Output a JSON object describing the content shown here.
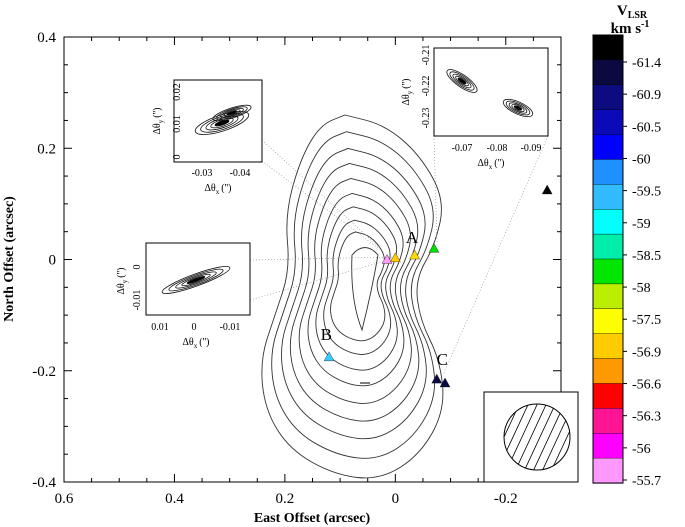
{
  "chart_data": {
    "type": "scatter",
    "xlabel": "East Offset (arcsec)",
    "ylabel": "North Offset (arcsec)",
    "xlim": [
      0.6,
      -0.3
    ],
    "ylim": [
      -0.4,
      0.4
    ],
    "xticks": [
      "0.6",
      "0.4",
      "0.2",
      "0",
      "-0.2"
    ],
    "yticks": [
      "0.4",
      "0.2",
      "0",
      "-0.2",
      "-0.4"
    ],
    "grid": false,
    "colorbar": {
      "title_main": "V",
      "title_sub": "LSR",
      "title_unit": "km s",
      "title_exp": "-1",
      "position": "right",
      "labels": [
        "-61.4",
        "-60.9",
        "-60.5",
        "-60",
        "-59.5",
        "-59",
        "-58.5",
        "-58",
        "-57.5",
        "-56.9",
        "-56.6",
        "-56.3",
        "-56",
        "-55.7"
      ],
      "colors": [
        "#000000",
        "#0a0a40",
        "#0c0c80",
        "#0a0ab8",
        "#0000ff",
        "#1e90ff",
        "#33bbff",
        "#00ffff",
        "#00eeaa",
        "#00e600",
        "#bbee00",
        "#ffff00",
        "#ffcc00",
        "#ff9900",
        "#ff0000",
        "#ff1493",
        "#ff00ff",
        "#ff99ff"
      ]
    },
    "labels": [
      {
        "text": "A",
        "x": -0.03,
        "y": 0.03
      },
      {
        "text": "B",
        "x": 0.125,
        "y": -0.145
      },
      {
        "text": "C",
        "x": -0.085,
        "y": -0.19
      }
    ],
    "points": [
      {
        "x": 0.12,
        "y": -0.175,
        "color": "#33ccff"
      },
      {
        "x": 0.015,
        "y": 0.0,
        "color": "#ff99ff"
      },
      {
        "x": 0.0,
        "y": 0.003,
        "color": "#ffcc00"
      },
      {
        "x": -0.035,
        "y": 0.008,
        "color": "#ffdd00"
      },
      {
        "x": -0.07,
        "y": 0.02,
        "color": "#00dd00"
      },
      {
        "x": -0.075,
        "y": -0.215,
        "color": "#0a0a40"
      },
      {
        "x": -0.09,
        "y": -0.222,
        "color": "#0a0a40"
      },
      {
        "x": -0.275,
        "y": 0.125,
        "color": "#000000"
      }
    ],
    "insets": [
      {
        "xlabel_main": "Δθ",
        "xlabel_sub": "x",
        "xlabel_unit": "('')",
        "ylabel_main": "Δθ",
        "ylabel_sub": "y",
        "ylabel_unit": "('')",
        "xticks": [
          "-0.03",
          "-0.04"
        ],
        "yticks": [
          "0",
          "0.01",
          "0.02"
        ]
      },
      {
        "xlabel_main": "Δθ",
        "xlabel_sub": "x",
        "xlabel_unit": "('')",
        "ylabel_main": "Δθ",
        "ylabel_sub": "y",
        "ylabel_unit": "('')",
        "xticks": [
          "-0.07",
          "-0.08",
          "-0.09"
        ],
        "yticks": [
          "-0.23",
          "-0.22",
          "-0.21"
        ]
      },
      {
        "xlabel_main": "Δθ",
        "xlabel_sub": "x",
        "xlabel_unit": "('')",
        "ylabel_main": "Δθ",
        "ylabel_sub": "y",
        "ylabel_unit": "('')",
        "xticks": [
          "0.01",
          "0",
          "-0.01"
        ],
        "yticks": [
          "-0.01",
          "0"
        ]
      }
    ]
  }
}
